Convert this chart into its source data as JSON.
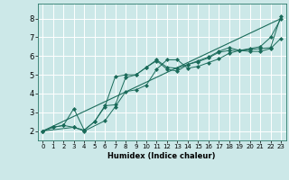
{
  "xlabel": "Humidex (Indice chaleur)",
  "bg_color": "#cce8e8",
  "grid_color": "#ffffff",
  "line_color": "#1a6b5a",
  "xlim": [
    -0.5,
    23.5
  ],
  "ylim": [
    1.5,
    8.8
  ],
  "xticks": [
    0,
    1,
    2,
    3,
    4,
    5,
    6,
    7,
    8,
    9,
    10,
    11,
    12,
    13,
    14,
    15,
    16,
    17,
    18,
    19,
    20,
    21,
    22,
    23
  ],
  "yticks": [
    2,
    3,
    4,
    5,
    6,
    7,
    8
  ],
  "series": [
    {
      "x": [
        0,
        1,
        2,
        3,
        4,
        5,
        6,
        7,
        8,
        9,
        10,
        11,
        12,
        13,
        14,
        15,
        16,
        17,
        18,
        19,
        20,
        21,
        22,
        23
      ],
      "y": [
        2.0,
        2.2,
        2.3,
        2.2,
        2.05,
        2.5,
        3.3,
        4.9,
        5.0,
        5.0,
        5.4,
        5.8,
        5.4,
        5.35,
        5.55,
        5.7,
        5.9,
        6.2,
        6.3,
        6.3,
        6.4,
        6.5,
        7.0,
        8.0
      ]
    },
    {
      "x": [
        0,
        1,
        2,
        3,
        4,
        5,
        6,
        7,
        8,
        9,
        10,
        11,
        12,
        13,
        14,
        15,
        16,
        17,
        18,
        19,
        20,
        21,
        22,
        23
      ],
      "y": [
        2.0,
        2.2,
        2.3,
        3.2,
        2.05,
        2.5,
        3.35,
        3.4,
        4.85,
        5.0,
        5.4,
        5.75,
        5.3,
        5.2,
        5.55,
        5.75,
        5.95,
        6.25,
        6.45,
        6.3,
        6.35,
        6.4,
        6.45,
        8.15
      ]
    },
    {
      "x": [
        0,
        3,
        4,
        6,
        7,
        8,
        9,
        10,
        11,
        12,
        13,
        14,
        15,
        16,
        17,
        18,
        19,
        20,
        21,
        22,
        23
      ],
      "y": [
        2.0,
        2.2,
        2.0,
        2.55,
        3.3,
        4.1,
        4.2,
        4.45,
        5.3,
        5.8,
        5.8,
        5.35,
        5.45,
        5.65,
        5.85,
        6.15,
        6.3,
        6.25,
        6.25,
        6.4,
        6.95
      ]
    },
    {
      "x": [
        0,
        23
      ],
      "y": [
        2.0,
        8.0
      ]
    }
  ]
}
